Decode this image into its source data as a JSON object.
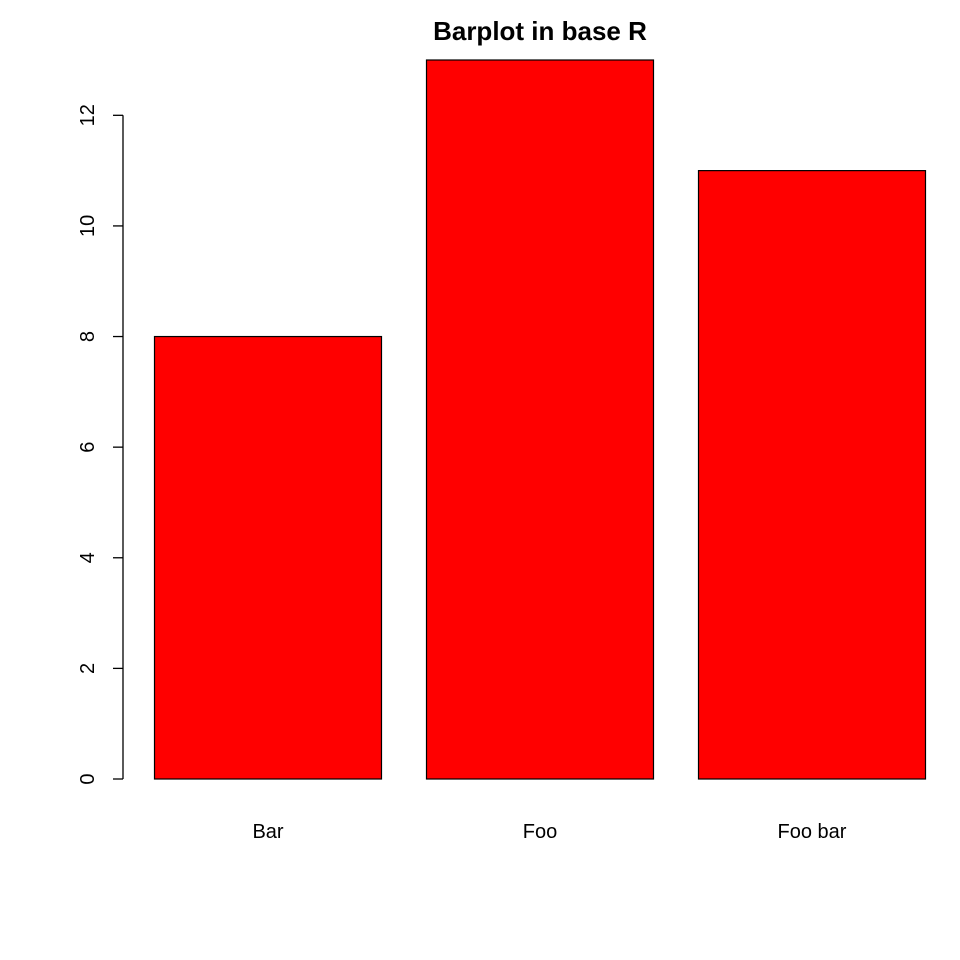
{
  "chart_data": {
    "type": "bar",
    "title": "Barplot in base R",
    "categories": [
      "Bar",
      "Foo",
      "Foo bar"
    ],
    "values": [
      8,
      13,
      11
    ],
    "xlabel": "",
    "ylabel": "",
    "ylim": [
      0,
      13
    ],
    "yticks": [
      0,
      2,
      4,
      6,
      8,
      10,
      12
    ],
    "grid": false,
    "legend": "none",
    "bar_color": "#ff0000",
    "border_color": "#000000"
  }
}
